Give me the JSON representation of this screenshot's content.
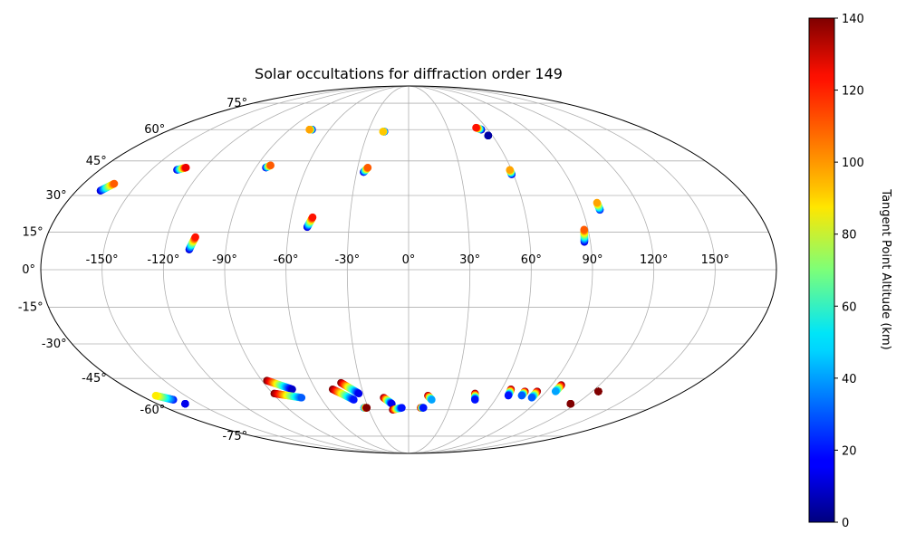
{
  "chart_data": {
    "type": "scatter",
    "projection": "mollweide",
    "title": "Solar occultations for diffraction order 149",
    "lon_ticks": [
      -150,
      -120,
      -90,
      -60,
      -30,
      0,
      30,
      60,
      90,
      120,
      150
    ],
    "lon_tick_labels": [
      "-150°",
      "-120°",
      "-90°",
      "-60°",
      "-30°",
      "0°",
      "30°",
      "60°",
      "90°",
      "120°",
      "150°"
    ],
    "lat_ticks": [
      -75,
      -60,
      -45,
      -30,
      -15,
      0,
      15,
      30,
      45,
      60,
      75
    ],
    "lat_tick_labels": [
      "-75°",
      "-60°",
      "-45°",
      "-30°",
      "-15°",
      "0°",
      "15°",
      "30°",
      "45°",
      "60°",
      "75°"
    ],
    "grid": true,
    "colorbar": {
      "label": "Tangent Point Altitude (km)",
      "colormap": "jet",
      "min": 0,
      "max": 140,
      "ticks": [
        0,
        20,
        40,
        60,
        80,
        100,
        120,
        140
      ],
      "tick_labels": [
        "0",
        "20",
        "40",
        "60",
        "80",
        "100",
        "120",
        "140"
      ]
    },
    "series": [
      {
        "lon_start": -167,
        "lat_start": 32,
        "lon_end": -163,
        "lat_end": 35,
        "alt_start": 10,
        "alt_end": 110
      },
      {
        "lon_start": -135,
        "lat_start": 41,
        "lon_end": -131,
        "lat_end": 42,
        "alt_start": 10,
        "alt_end": 125
      },
      {
        "lon_start": -108,
        "lat_start": 8,
        "lon_end": -106,
        "lat_end": 13,
        "alt_start": 10,
        "alt_end": 120
      },
      {
        "lon_start": -84,
        "lat_start": 42,
        "lon_end": -82,
        "lat_end": 43,
        "alt_start": 10,
        "alt_end": 110
      },
      {
        "lon_start": -73,
        "lat_start": 60,
        "lon_end": -75,
        "lat_end": 60,
        "alt_start": 5,
        "alt_end": 100
      },
      {
        "lon_start": -51,
        "lat_start": 17,
        "lon_end": -49,
        "lat_end": 21,
        "alt_start": 10,
        "alt_end": 120
      },
      {
        "lon_start": -26,
        "lat_start": 40,
        "lon_end": -24,
        "lat_end": 42,
        "alt_start": 10,
        "alt_end": 110
      },
      {
        "lon_start": -18,
        "lat_start": 59,
        "lon_end": -19,
        "lat_end": 59,
        "alt_start": 5,
        "alt_end": 95
      },
      {
        "lon_start": 55,
        "lat_start": 60,
        "lon_end": 52,
        "lat_end": 61,
        "alt_start": 5,
        "alt_end": 120
      },
      {
        "lon_start": 57,
        "lat_start": 57,
        "lon_end": 57,
        "lat_end": 57,
        "alt_start": 5,
        "alt_end": 5
      },
      {
        "lon_start": 59,
        "lat_start": 39,
        "lon_end": 59,
        "lat_end": 41,
        "alt_start": 10,
        "alt_end": 100
      },
      {
        "lon_start": 87,
        "lat_start": 11,
        "lon_end": 88,
        "lat_end": 16,
        "alt_start": 10,
        "alt_end": 110
      },
      {
        "lon_start": 99,
        "lat_start": 24,
        "lon_end": 99,
        "lat_end": 27,
        "alt_start": 20,
        "alt_end": 100
      },
      {
        "lon_start": -163,
        "lat_start": -55,
        "lon_end": -170,
        "lat_end": -53,
        "alt_start": 20,
        "alt_end": 90
      },
      {
        "lon_start": -160,
        "lat_start": -57,
        "lon_end": -160,
        "lat_end": -57,
        "alt_start": 15,
        "alt_end": 15
      },
      {
        "lon_start": -87,
        "lat_start": -46,
        "lon_end": -75,
        "lat_end": -50,
        "alt_start": 140,
        "alt_end": 10
      },
      {
        "lon_start": -89,
        "lat_start": -52,
        "lon_end": -73,
        "lat_end": -54,
        "alt_start": 140,
        "alt_end": 30
      },
      {
        "lon_start": -49,
        "lat_start": -50,
        "lon_end": -38,
        "lat_end": -55,
        "alt_start": 140,
        "alt_end": 20
      },
      {
        "lon_start": -42,
        "lat_start": -47,
        "lon_end": -33,
        "lat_end": -52,
        "alt_start": 140,
        "alt_end": 15
      },
      {
        "lon_start": -33,
        "lat_start": -59,
        "lon_end": -31,
        "lat_end": -59,
        "alt_start": 25,
        "alt_end": 140
      },
      {
        "lon_start": -17,
        "lat_start": -54,
        "lon_end": -12,
        "lat_end": -57,
        "alt_start": 140,
        "alt_end": 15
      },
      {
        "lon_start": -12,
        "lat_start": -60,
        "lon_end": -5,
        "lat_end": -59,
        "alt_start": 140,
        "alt_end": 20
      },
      {
        "lon_start": 9,
        "lat_start": -59,
        "lon_end": 11,
        "lat_end": -59,
        "alt_start": 140,
        "alt_end": 20
      },
      {
        "lon_start": 13,
        "lat_start": -53,
        "lon_end": 16,
        "lat_end": -55,
        "alt_start": 140,
        "alt_end": 40
      },
      {
        "lon_start": 44,
        "lat_start": -52,
        "lon_end": 46,
        "lat_end": -55,
        "alt_start": 140,
        "alt_end": 20
      },
      {
        "lon_start": 66,
        "lat_start": -50,
        "lon_end": 67,
        "lat_end": -53,
        "alt_start": 140,
        "alt_end": 20
      },
      {
        "lon_start": 76,
        "lat_start": -51,
        "lon_end": 76,
        "lat_end": -53,
        "alt_start": 140,
        "alt_end": 30
      },
      {
        "lon_start": 84,
        "lat_start": -51,
        "lon_end": 84,
        "lat_end": -54,
        "alt_start": 140,
        "alt_end": 30
      },
      {
        "lon_start": 96,
        "lat_start": -48,
        "lon_end": 96,
        "lat_end": -51,
        "alt_start": 140,
        "alt_end": 40
      },
      {
        "lon_start": 116,
        "lat_start": -57,
        "lon_end": 116,
        "lat_end": -57,
        "alt_start": 140,
        "alt_end": 140
      },
      {
        "lon_start": 124,
        "lat_start": -51,
        "lon_end": 124,
        "lat_end": -51,
        "alt_start": 140,
        "alt_end": 140
      }
    ]
  }
}
